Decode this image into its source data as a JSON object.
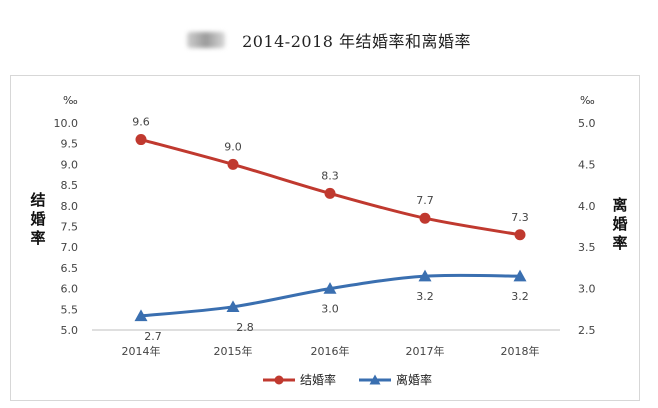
{
  "header": {
    "title": "2014-2018 年结婚率和离婚率"
  },
  "chart_data": {
    "type": "line",
    "categories": [
      "2014年",
      "2015年",
      "2016年",
      "2017年",
      "2018年"
    ],
    "y_left": {
      "label_chars": [
        "结",
        "婚",
        "率"
      ],
      "unit": "‰",
      "min": 5.0,
      "max": 10.0,
      "step": 0.5,
      "ticks": [
        "10.0",
        "9.5",
        "9.0",
        "8.5",
        "8.0",
        "7.5",
        "7.0",
        "6.5",
        "6.0",
        "5.5",
        "5.0"
      ]
    },
    "y_right": {
      "label_chars": [
        "离",
        "婚",
        "率"
      ],
      "unit": "‰",
      "min": 2.5,
      "max": 5.0,
      "step": 0.5,
      "ticks": [
        "5.0",
        "4.5",
        "4.0",
        "3.5",
        "3.0",
        "2.5"
      ]
    },
    "series": [
      {
        "name": "结婚率",
        "axis": "left",
        "color": "#c0392f",
        "marker": "circle",
        "values": [
          9.6,
          9.0,
          8.3,
          7.7,
          7.3
        ],
        "labels": [
          "9.6",
          "9.0",
          "8.3",
          "7.7",
          "7.3"
        ]
      },
      {
        "name": "离婚率",
        "axis": "right",
        "color": "#3a6fb0",
        "marker": "triangle",
        "values": [
          2.67,
          2.78,
          3.0,
          3.15,
          3.15
        ],
        "labels": [
          "2.7",
          "2.8",
          "3.0",
          "3.2",
          "3.2"
        ]
      }
    ],
    "legend": {
      "position": "bottom"
    },
    "grid": false
  }
}
